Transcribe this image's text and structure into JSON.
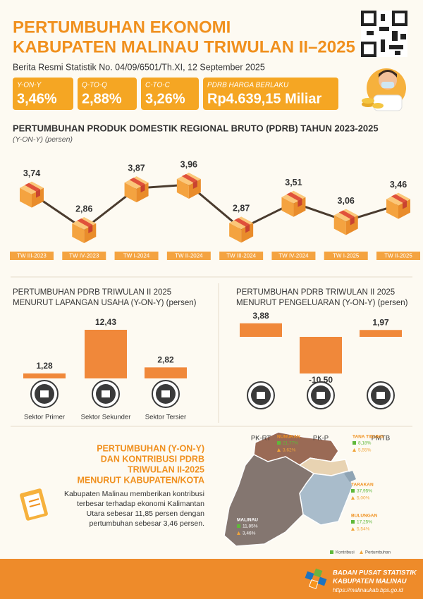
{
  "header": {
    "title": [
      "PERTUMBUHAN EKONOMI",
      "KABUPATEN MALINAU TRIWULAN II–2025"
    ],
    "subtitle": "Berita Resmi Statistik No. 04/09/6501/Th.XI, 12 September 2025"
  },
  "summary": [
    {
      "label": "Y-ON-Y",
      "value": "3,46%"
    },
    {
      "label": "Q-TO-Q",
      "value": "2,88%"
    },
    {
      "label": "C-TO-C",
      "value": "3,26%"
    },
    {
      "label": "PDRB HARGA BERLAKU",
      "value": "Rp4.639,15 Miliar"
    }
  ],
  "chart_data": [
    {
      "type": "line",
      "title": "PERTUMBUHAN PRODUK DOMESTIK REGIONAL BRUTO (PDRB) TAHUN 2023-2025",
      "subtitle": "(Y-ON-Y) (persen)",
      "categories": [
        "TW III-2023",
        "TW IV-2023",
        "TW I-2024",
        "TW II-2024",
        "TW III-2024",
        "TW IV-2024",
        "TW I-2025",
        "TW II-2025"
      ],
      "values": [
        3.74,
        2.86,
        3.87,
        3.96,
        2.87,
        3.51,
        3.06,
        3.46
      ],
      "value_labels": [
        "3,74",
        "2,86",
        "3,87",
        "3,96",
        "2,87",
        "3,51",
        "3,06",
        "3,46"
      ],
      "color": "#4a3b2e"
    },
    {
      "type": "bar",
      "title": "PERTUMBUHAN PDRB TRIWULAN II 2025",
      "subtitle": "MENURUT LAPANGAN USAHA (Y-ON-Y) (persen)",
      "categories": [
        "Sektor Primer",
        "Sektor Sekunder",
        "Sektor Tersier"
      ],
      "values": [
        1.28,
        12.43,
        2.82
      ],
      "value_labels": [
        "1,28",
        "12,43",
        "2,82"
      ],
      "color": "#f0883a"
    },
    {
      "type": "bar",
      "title": "PERTUMBUHAN PDRB TRIWULAN II 2025",
      "subtitle": "MENURUT PENGELUARAN (Y-ON-Y) (persen)",
      "categories": [
        "PK-RT",
        "PK-P",
        "PMTB"
      ],
      "values": [
        3.88,
        -10.5,
        1.97
      ],
      "value_labels": [
        "3,88",
        "-10,50",
        "1,97"
      ],
      "color": "#f0883a"
    }
  ],
  "map": {
    "title": [
      "PERTUMBUHAN (Y-ON-Y)",
      "DAN KONTRIBUSI PDRB",
      "TRIWULAN II-2025",
      "MENURUT KABUPATEN/KOTA"
    ],
    "description": "Kabupaten Malinau memberikan kontribusi terbesar terhadap ekonomi Kalimantan Utara sebesar 11,85 persen dengan pertumbuhan sebesar 3,46 persen.",
    "regions": [
      {
        "name": "NUNUKAN",
        "contribution": "21,77%",
        "growth": "3,62%"
      },
      {
        "name": "TANA TIDUNG",
        "contribution": "8,18%",
        "growth": "5,55%"
      },
      {
        "name": "TARAKAN",
        "contribution": "37,95%",
        "growth": "5,00%"
      },
      {
        "name": "BULUNGAN",
        "contribution": "17,25%",
        "growth": "5,54%"
      },
      {
        "name": "MALINAU",
        "contribution": "11,85%",
        "growth": "3,46%"
      }
    ],
    "legend": [
      "Kontribusi",
      "Pertumbuhan"
    ]
  },
  "footer": {
    "org": [
      "BADAN PUSAT STATISTIK",
      "KABUPATEN MALINAU"
    ],
    "url": "https://malinaukab.bps.go.id"
  }
}
